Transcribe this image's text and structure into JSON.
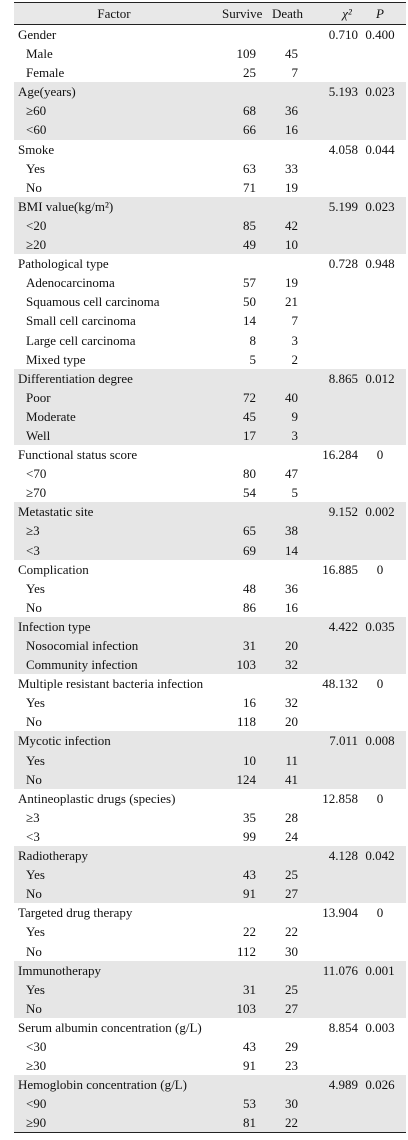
{
  "table": {
    "header": [
      "Factor",
      "Survive",
      "Death",
      "χ²",
      "P"
    ],
    "groups": [
      {
        "factor": "Gender",
        "chi2": "0.710",
        "p": "0.400",
        "rows": [
          [
            "Male",
            "109",
            "45"
          ],
          [
            "Female",
            "25",
            "7"
          ]
        ]
      },
      {
        "factor": "Age(years)",
        "chi2": "5.193",
        "p": "0.023",
        "rows": [
          [
            "≥60",
            "68",
            "36"
          ],
          [
            "<60",
            "66",
            "16"
          ]
        ]
      },
      {
        "factor": "Smoke",
        "chi2": "4.058",
        "p": "0.044",
        "rows": [
          [
            "Yes",
            "63",
            "33"
          ],
          [
            "No",
            "71",
            "19"
          ]
        ]
      },
      {
        "factor": "BMI value(kg/m²)",
        "chi2": "5.199",
        "p": "0.023",
        "rows": [
          [
            "<20",
            "85",
            "42"
          ],
          [
            "≥20",
            "49",
            "10"
          ]
        ]
      },
      {
        "factor": "Pathological type",
        "chi2": "0.728",
        "p": "0.948",
        "rows": [
          [
            "Adenocarcinoma",
            "57",
            "19"
          ],
          [
            "Squamous cell carcinoma",
            "50",
            "21"
          ],
          [
            "Small cell carcinoma",
            "14",
            "7"
          ],
          [
            "Large cell carcinoma",
            "8",
            "3"
          ],
          [
            "Mixed type",
            "5",
            "2"
          ]
        ]
      },
      {
        "factor": "Differentiation degree",
        "chi2": "8.865",
        "p": "0.012",
        "rows": [
          [
            "Poor",
            "72",
            "40"
          ],
          [
            "Moderate",
            "45",
            "9"
          ],
          [
            "Well",
            "17",
            "3"
          ]
        ]
      },
      {
        "factor": "Functional status score",
        "chi2": "16.284",
        "p": "0",
        "rows": [
          [
            "<70",
            "80",
            "47"
          ],
          [
            "≥70",
            "54",
            "5"
          ]
        ]
      },
      {
        "factor": "Metastatic site",
        "chi2": "9.152",
        "p": "0.002",
        "rows": [
          [
            "≥3",
            "65",
            "38"
          ],
          [
            "<3",
            "69",
            "14"
          ]
        ]
      },
      {
        "factor": "Complication",
        "chi2": "16.885",
        "p": "0",
        "rows": [
          [
            "Yes",
            "48",
            "36"
          ],
          [
            "No",
            "86",
            "16"
          ]
        ]
      },
      {
        "factor": "Infection type",
        "chi2": "4.422",
        "p": "0.035",
        "rows": [
          [
            "Nosocomial infection",
            "31",
            "20"
          ],
          [
            "Community infection",
            "103",
            "32"
          ]
        ]
      },
      {
        "factor": "Multiple resistant bacteria infection",
        "chi2": "48.132",
        "p": "0",
        "rows": [
          [
            "Yes",
            "16",
            "32"
          ],
          [
            "No",
            "118",
            "20"
          ]
        ]
      },
      {
        "factor": "Mycotic infection",
        "chi2": "7.011",
        "p": "0.008",
        "rows": [
          [
            "Yes",
            "10",
            "11"
          ],
          [
            "No",
            "124",
            "41"
          ]
        ]
      },
      {
        "factor": "Antineoplastic drugs (species)",
        "chi2": "12.858",
        "p": "0",
        "rows": [
          [
            "≥3",
            "35",
            "28"
          ],
          [
            "<3",
            "99",
            "24"
          ]
        ]
      },
      {
        "factor": "Radiotherapy",
        "chi2": "4.128",
        "p": "0.042",
        "rows": [
          [
            "Yes",
            "43",
            "25"
          ],
          [
            "No",
            "91",
            "27"
          ]
        ]
      },
      {
        "factor": "Targeted drug therapy",
        "chi2": "13.904",
        "p": "0",
        "rows": [
          [
            "Yes",
            "22",
            "22"
          ],
          [
            "No",
            "112",
            "30"
          ]
        ]
      },
      {
        "factor": "Immunotherapy",
        "chi2": "11.076",
        "p": "0.001",
        "rows": [
          [
            "Yes",
            "31",
            "25"
          ],
          [
            "No",
            "103",
            "27"
          ]
        ]
      },
      {
        "factor": "Serum albumin concentration (g/L)",
        "chi2": "8.854",
        "p": "0.003",
        "rows": [
          [
            "<30",
            "43",
            "29"
          ],
          [
            "≥30",
            "91",
            "23"
          ]
        ]
      },
      {
        "factor": "Hemoglobin concentration (g/L)",
        "chi2": "4.989",
        "p": "0.026",
        "rows": [
          [
            "<90",
            "53",
            "30"
          ],
          [
            "≥90",
            "81",
            "22"
          ]
        ]
      }
    ]
  }
}
